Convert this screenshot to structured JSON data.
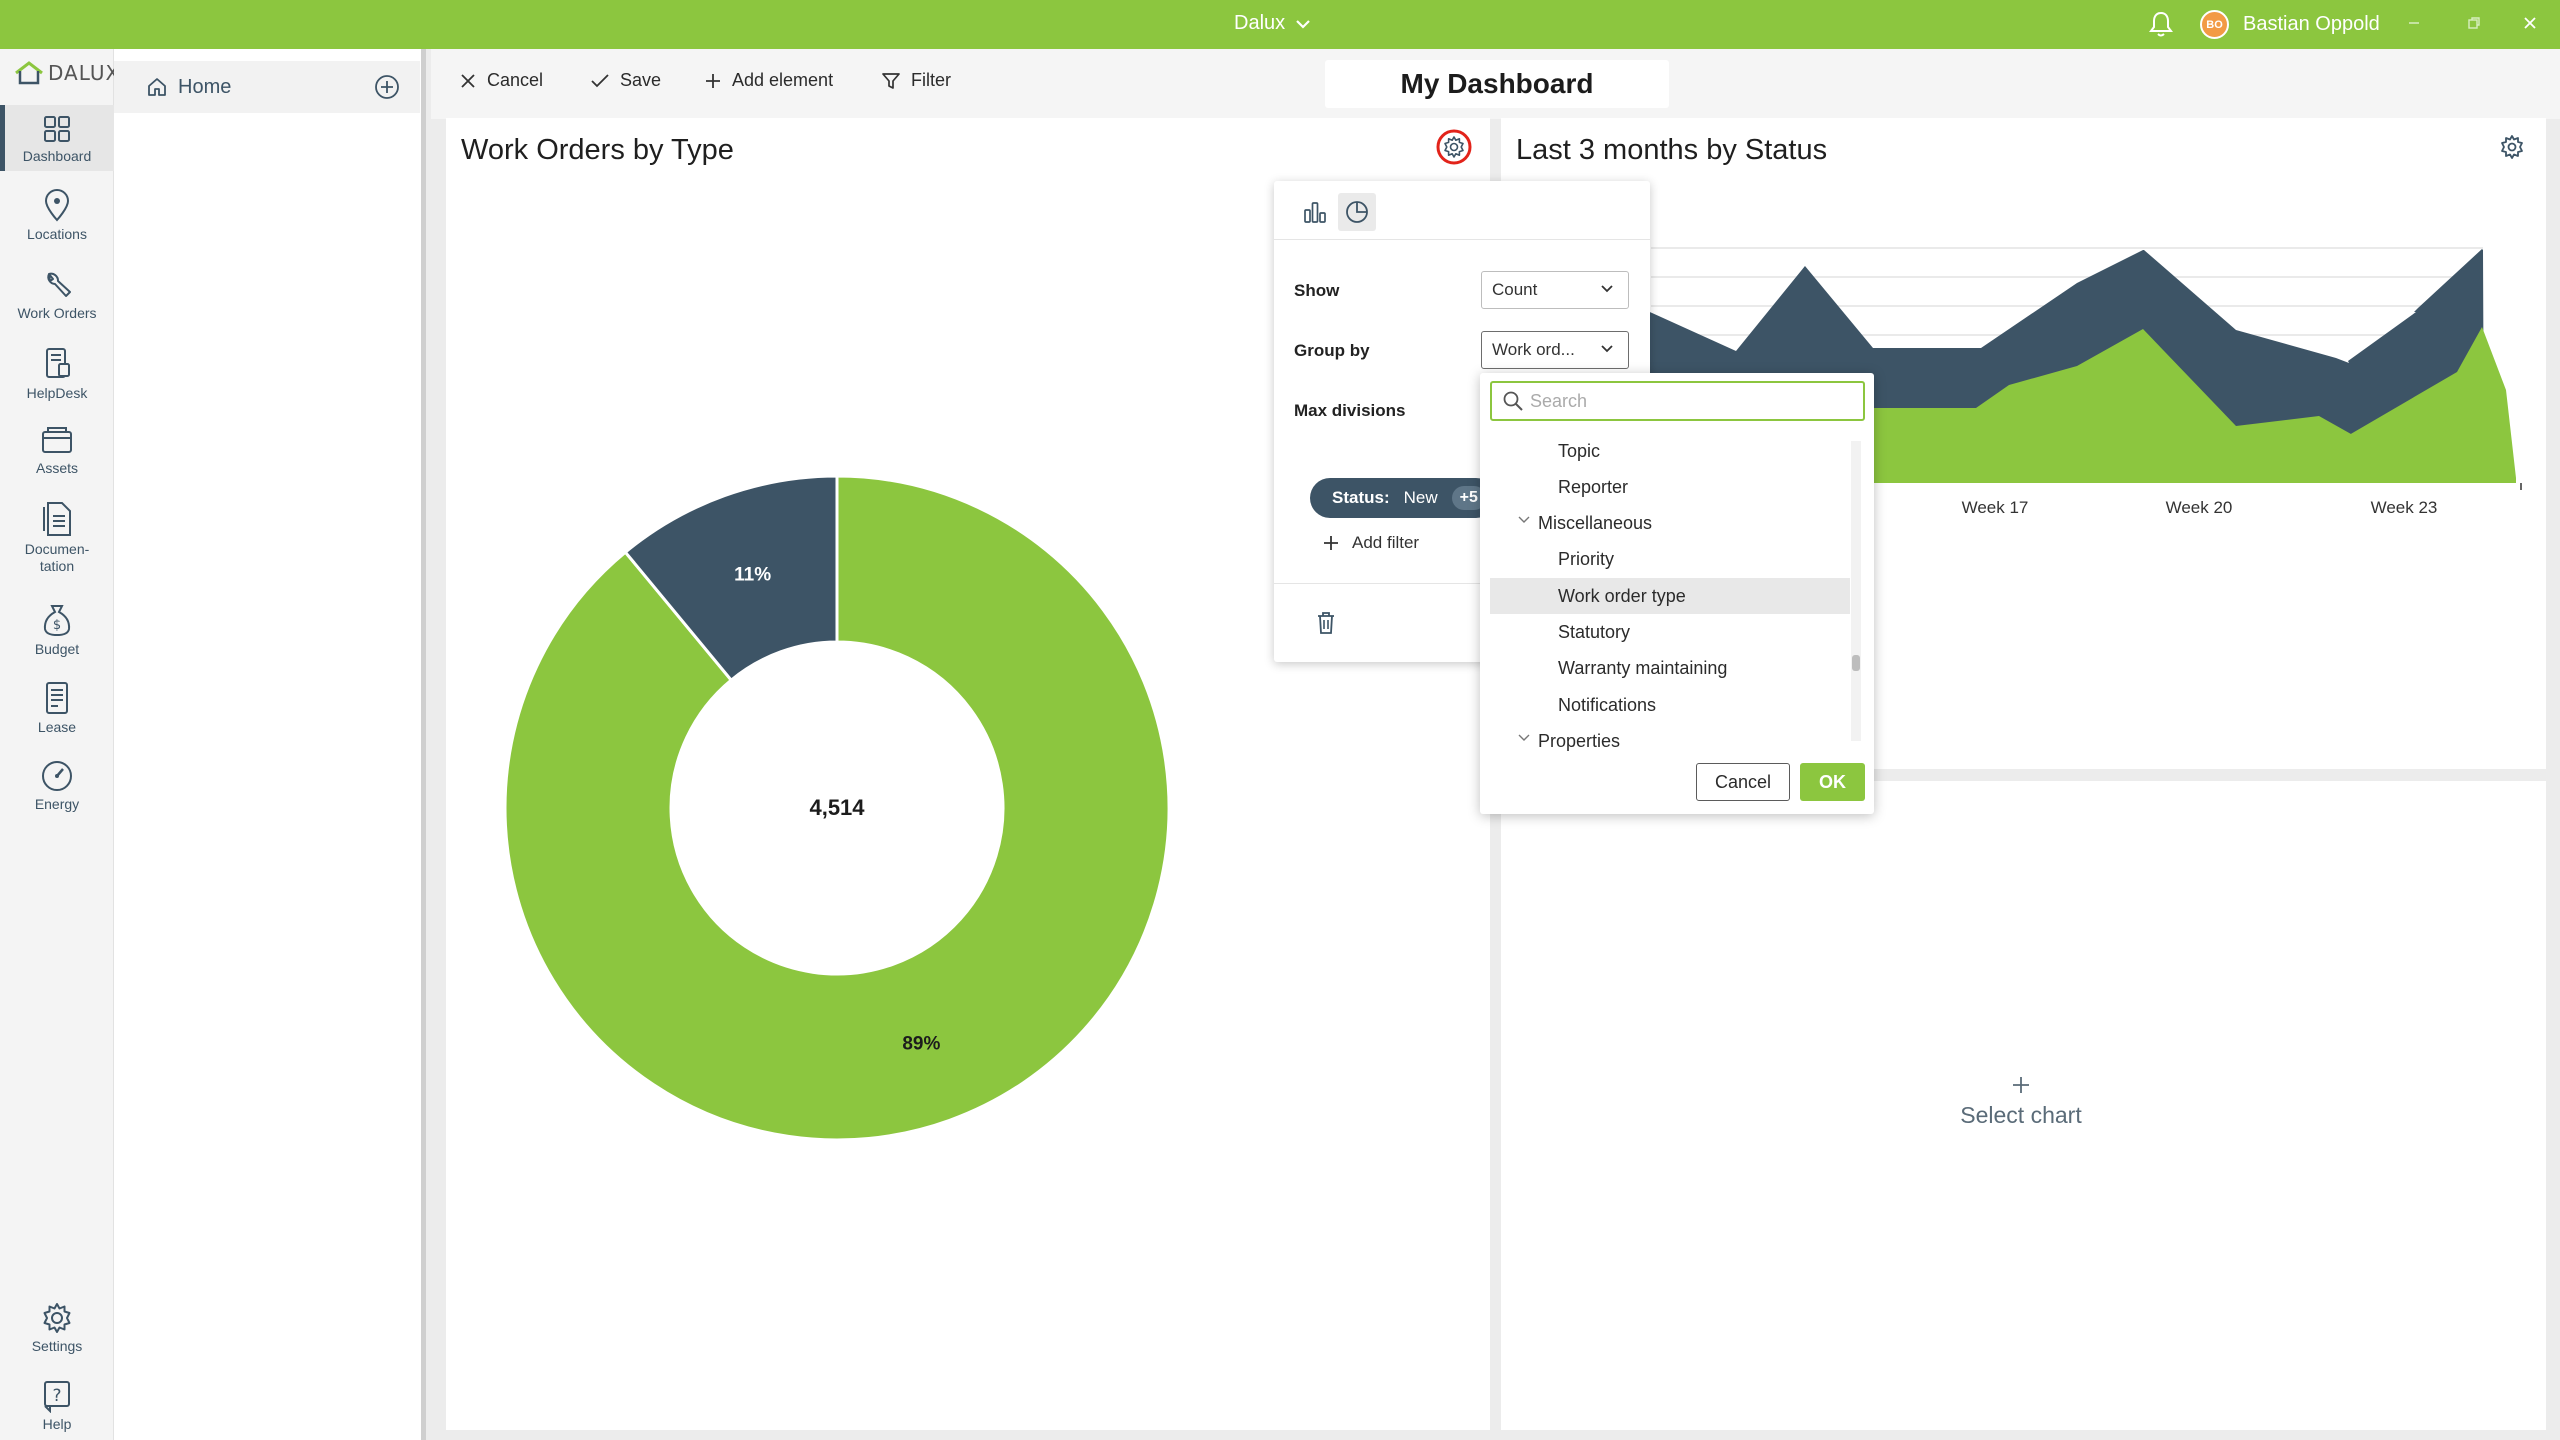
{
  "titlebar": {
    "app_name": "Dalux",
    "user_initials": "BO",
    "user_name": "Bastian Oppold",
    "accent_color": "#8cc63f"
  },
  "logo": {
    "text": "DALUX"
  },
  "nav": {
    "items": [
      {
        "label": "Dashboard",
        "icon": "grid-icon",
        "active": true
      },
      {
        "label": "Locations",
        "icon": "map-pin-icon"
      },
      {
        "label": "Work Orders",
        "icon": "wrench-icon"
      },
      {
        "label": "HelpDesk",
        "icon": "helpdesk-icon"
      },
      {
        "label": "Assets",
        "icon": "box-icon"
      },
      {
        "label": "Documen-\ntation",
        "icon": "document-icon"
      },
      {
        "label": "Budget",
        "icon": "money-bag-icon"
      },
      {
        "label": "Lease",
        "icon": "lease-icon"
      },
      {
        "label": "Energy",
        "icon": "gauge-icon"
      }
    ],
    "bottom": [
      {
        "label": "Settings",
        "icon": "gear-icon"
      },
      {
        "label": "Help",
        "icon": "help-icon"
      }
    ]
  },
  "sidepanel": {
    "home_label": "Home"
  },
  "toolbar": {
    "cancel": "Cancel",
    "save": "Save",
    "add_element": "Add element",
    "filter": "Filter",
    "dashboard_title": "My Dashboard"
  },
  "card1": {
    "title": "Work Orders by Type",
    "chart_data": {
      "type": "pie",
      "center_label": "4,514",
      "slices": [
        {
          "label": "89%",
          "value": 89,
          "color": "#8cc63f"
        },
        {
          "label": "11%",
          "value": 11,
          "color": "#3d5466"
        }
      ]
    }
  },
  "card2": {
    "title": "Last 3 months by Status",
    "chart_data": {
      "type": "area",
      "x_ticks": [
        "Week 17",
        "Week 20",
        "Week 23"
      ],
      "series_colors": [
        "#3d5466",
        "#8cc63f",
        "#7db8e0"
      ]
    }
  },
  "card3": {
    "select_label": "Select chart"
  },
  "popover": {
    "show_label": "Show",
    "show_value": "Count",
    "groupby_label": "Group by",
    "groupby_value": "Work ord...",
    "maxdiv_label": "Max divisions",
    "filter_key": "Status:",
    "filter_value": "New",
    "filter_more": "+5",
    "add_filter": "Add filter"
  },
  "dropdown": {
    "search_placeholder": "Search",
    "items": [
      {
        "label": "Topic",
        "kind": "child"
      },
      {
        "label": "Reporter",
        "kind": "child"
      },
      {
        "label": "Miscellaneous",
        "kind": "group"
      },
      {
        "label": "Priority",
        "kind": "child"
      },
      {
        "label": "Work order type",
        "kind": "child",
        "highlight": true
      },
      {
        "label": "Statutory",
        "kind": "child"
      },
      {
        "label": "Warranty maintaining",
        "kind": "child"
      },
      {
        "label": "Notifications",
        "kind": "child"
      },
      {
        "label": "Properties",
        "kind": "group"
      }
    ],
    "cancel": "Cancel",
    "ok": "OK"
  }
}
